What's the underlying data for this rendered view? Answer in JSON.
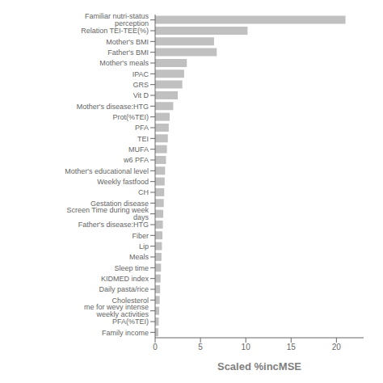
{
  "chart_data": {
    "type": "bar",
    "orientation": "horizontal",
    "x_label": "Scaled %incMSE",
    "categories": [
      "Familiar nutri-status perception",
      "Relation TEI-TEE(%)",
      "Mother's BMI",
      "Father's BMI",
      "Mother's meals",
      "IPAC",
      "GRS",
      "Vit D",
      "Mother's disease:HTG",
      "Prot(%TEI)",
      "PFA",
      "TEI",
      "MUFA",
      "w6 PFA",
      "Mother's educational level",
      "Weekly fastfood",
      "CH",
      "Gestation disease",
      "Screen Time during week days",
      "Father's disease:HTG",
      "Fiber",
      "Lip",
      "Meals",
      "Sleep time",
      "KIDMED index",
      "Daily pasta/rice",
      "Cholesterol",
      "me for wevy intense weekly activities",
      "PFA(%TEI)",
      "Family income"
    ],
    "values": [
      21.0,
      10.2,
      6.5,
      6.8,
      3.5,
      3.2,
      3.0,
      2.5,
      2.0,
      1.6,
      1.5,
      1.4,
      1.3,
      1.2,
      1.1,
      1.05,
      1.0,
      0.95,
      0.9,
      0.85,
      0.8,
      0.75,
      0.7,
      0.65,
      0.6,
      0.55,
      0.5,
      0.45,
      0.4,
      0.35
    ],
    "color": "#c0c0c0",
    "xlim": [
      0,
      23
    ],
    "xticks": [
      0,
      5,
      10,
      15,
      20
    ],
    "grid": false
  }
}
